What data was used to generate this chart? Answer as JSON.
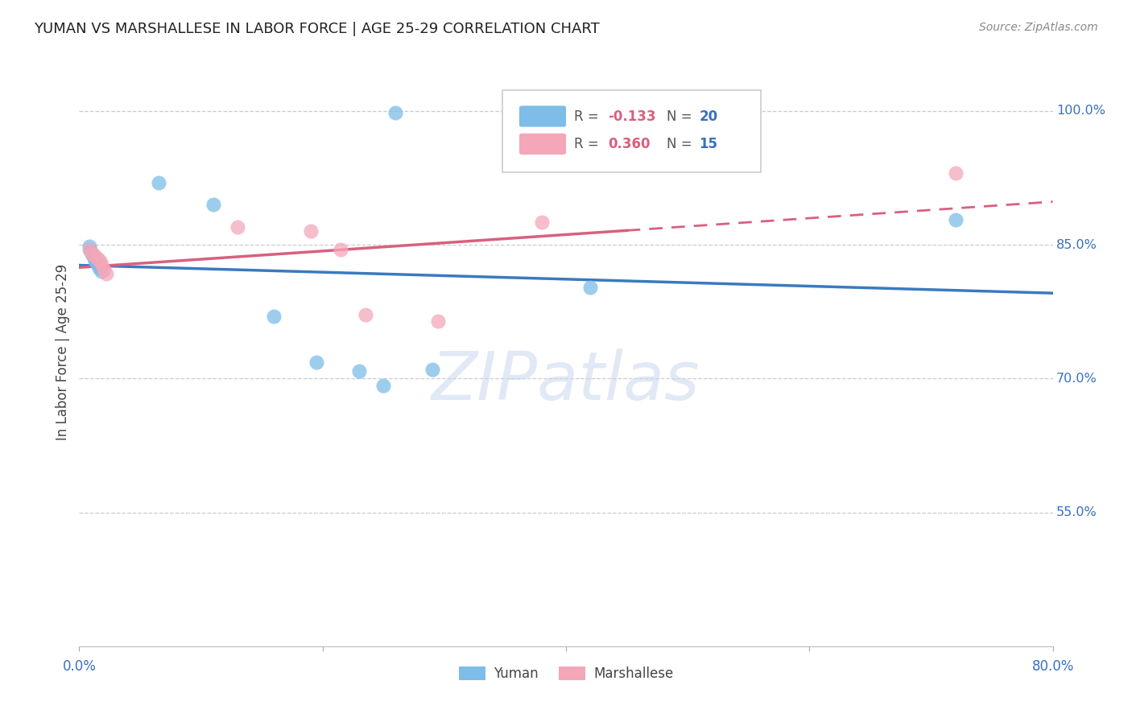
{
  "title": "YUMAN VS MARSHALLESE IN LABOR FORCE | AGE 25-29 CORRELATION CHART",
  "source": "Source: ZipAtlas.com",
  "ylabel": "In Labor Force | Age 25-29",
  "xlim": [
    0.0,
    0.8
  ],
  "ylim": [
    0.4,
    1.06
  ],
  "yticks": [
    0.55,
    0.7,
    0.85,
    1.0
  ],
  "yticklabels": [
    "55.0%",
    "70.0%",
    "85.0%",
    "100.0%"
  ],
  "xtick_positions": [
    0.0,
    0.2,
    0.4,
    0.6,
    0.8
  ],
  "blue_color": "#7dbde8",
  "pink_color": "#f4a7b9",
  "blue_line_color": "#3a7abf",
  "pink_line_color": "#d9607e",
  "legend_R_blue": "-0.133",
  "legend_N_blue": "20",
  "legend_R_pink": "0.360",
  "legend_N_pink": "15",
  "watermark": "ZIPatlas",
  "yuman_x": [
    0.008,
    0.009,
    0.01,
    0.011,
    0.012,
    0.013,
    0.014,
    0.015,
    0.016,
    0.018,
    0.065,
    0.11,
    0.16,
    0.195,
    0.23,
    0.25,
    0.29,
    0.42,
    0.72,
    0.26
  ],
  "yuman_y": [
    0.848,
    0.844,
    0.84,
    0.838,
    0.836,
    0.832,
    0.83,
    0.828,
    0.824,
    0.82,
    0.92,
    0.895,
    0.77,
    0.718,
    0.708,
    0.692,
    0.71,
    0.802,
    0.878,
    0.998
  ],
  "marshallese_x": [
    0.008,
    0.01,
    0.012,
    0.015,
    0.017,
    0.018,
    0.02,
    0.022,
    0.13,
    0.19,
    0.215,
    0.235,
    0.38,
    0.295,
    0.72
  ],
  "marshallese_y": [
    0.845,
    0.84,
    0.838,
    0.835,
    0.832,
    0.828,
    0.822,
    0.818,
    0.87,
    0.865,
    0.845,
    0.772,
    0.875,
    0.764,
    0.93
  ]
}
